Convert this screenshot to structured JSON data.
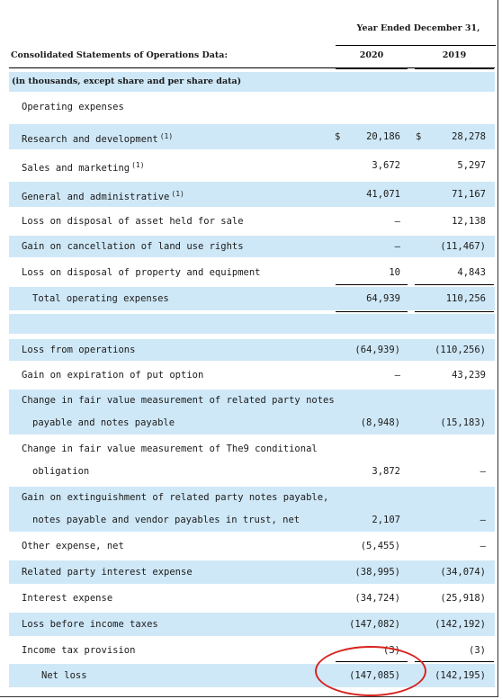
{
  "header": {
    "period": "Year Ended December 31,",
    "title": "Consolidated Statements of Operations Data:",
    "years": [
      "2020",
      "2019"
    ],
    "units_note": "(in thousands, except share and per share data)"
  },
  "rows": [
    {
      "label": "Operating expenses"
    },
    {
      "label": "Research and development",
      "note": "(1)",
      "cur": "$",
      "v2020": "20,186",
      "v2019": "28,278"
    },
    {
      "label": "Sales and marketing",
      "note": "(1)",
      "v2020": "3,672",
      "v2019": "5,297"
    },
    {
      "label": "General and administrative",
      "note": "(1)",
      "v2020": "41,071",
      "v2019": "71,167"
    },
    {
      "label": "Loss on disposal of asset held for sale",
      "v2020": "—",
      "v2019": "12,138"
    },
    {
      "label": "Gain on cancellation of land use rights",
      "v2020": "—",
      "v2019": "(11,467)"
    },
    {
      "label": "Loss on disposal of property and equipment",
      "v2020": "10",
      "v2019": "4,843"
    },
    {
      "label": "Total operating expenses",
      "v2020": "64,939",
      "v2019": "110,256"
    },
    {
      "label": "Loss from operations",
      "v2020": "(64,939)",
      "v2019": "(110,256)"
    },
    {
      "label": "Gain on expiration of put option",
      "v2020": "—",
      "v2019": "43,239"
    },
    {
      "label": "Change in fair value measurement of related party notes"
    },
    {
      "label": "payable and notes payable",
      "v2020": "(8,948)",
      "v2019": "(15,183)"
    },
    {
      "label": "Change in fair value measurement of The9 conditional"
    },
    {
      "label": "obligation",
      "v2020": "3,872",
      "v2019": "—"
    },
    {
      "label": "Gain on extinguishment of related party notes payable,"
    },
    {
      "label": "notes payable and vendor payables in trust, net",
      "v2020": "2,107",
      "v2019": "—"
    },
    {
      "label": "Other expense, net",
      "v2020": "(5,455)",
      "v2019": "—"
    },
    {
      "label": "Related party interest expense",
      "v2020": "(38,995)",
      "v2019": "(34,074)"
    },
    {
      "label": "Interest expense",
      "v2020": "(34,724)",
      "v2019": "(25,918)"
    },
    {
      "label": "Loss before income taxes",
      "v2020": "(147,082)",
      "v2019": "(142,192)"
    },
    {
      "label": "Income tax provision",
      "v2020": "(3)",
      "v2019": "(3)"
    },
    {
      "label": "Net loss",
      "v2020": "(147,085)",
      "v2019": "(142,195)"
    }
  ],
  "annotation": {
    "color": "#d8231f",
    "shape": "ellipse",
    "highlighted_value": "(147,085)"
  }
}
